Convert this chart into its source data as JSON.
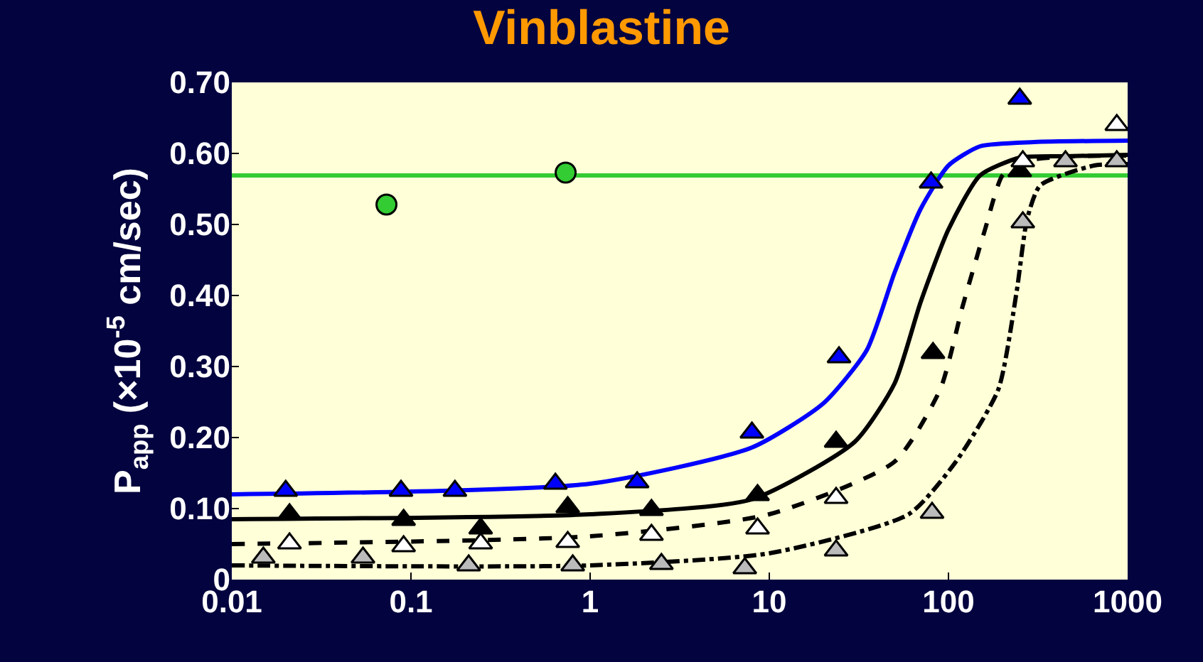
{
  "chart_data": {
    "type": "scatter",
    "title": "Vinblastine",
    "ylabel": "P$_{app}$ (×10$^{-5}$ cm/sec)",
    "log": "x",
    "grid": false,
    "xlim": [
      0.01,
      1000
    ],
    "xticks": [
      0.01,
      0.1,
      1,
      10,
      100,
      1000
    ],
    "ylim": [
      0,
      0.7
    ],
    "yticks": [
      0,
      {
        "value": 0.1,
        "label": "0.10"
      },
      {
        "value": 0.2,
        "label": "0.20"
      },
      {
        "value": 0.3,
        "label": "0.30"
      },
      {
        "value": 0.4,
        "label": "0.40"
      },
      {
        "value": 0.5,
        "label": "0.50"
      },
      {
        "value": 0.6,
        "label": "0.60"
      },
      {
        "value": 0.7,
        "label": "0.70"
      }
    ],
    "ref_lines": [
      {
        "axis": "y",
        "value": 0.569,
        "color": "#33cc33",
        "line_style": "solid"
      }
    ],
    "series": [
      {
        "type": "line",
        "color": "#0000ff",
        "line_style": "solid",
        "marker": "none",
        "x": [
          0.01,
          1,
          8,
          20,
          35,
          50,
          70,
          100,
          150,
          300,
          1000
        ],
        "values": [
          0.12,
          0.135,
          0.186,
          0.248,
          0.323,
          0.432,
          0.522,
          0.583,
          0.61,
          0.616,
          0.618
        ]
      },
      {
        "type": "line",
        "color": "#000000",
        "line_style": "solid",
        "marker": "none",
        "x": [
          0.01,
          1,
          8,
          30,
          50,
          70,
          100,
          150,
          250,
          450,
          1000
        ],
        "values": [
          0.085,
          0.092,
          0.113,
          0.194,
          0.276,
          0.391,
          0.493,
          0.569,
          0.594,
          0.596,
          0.598
        ]
      },
      {
        "type": "line",
        "color": "#000000",
        "line_style": "dashed",
        "marker": "none",
        "x": [
          0.01,
          1,
          10,
          50,
          90,
          120,
          160,
          200,
          260,
          500,
          1000
        ],
        "values": [
          0.05,
          0.061,
          0.092,
          0.166,
          0.268,
          0.385,
          0.493,
          0.569,
          0.589,
          0.596,
          0.597
        ]
      },
      {
        "type": "line",
        "color": "#000000",
        "line_style": "dotted",
        "marker": "none",
        "x": [
          0.01,
          1,
          10,
          60,
          110,
          190,
          240,
          275,
          325,
          650,
          1000
        ],
        "values": [
          0.02,
          0.02,
          0.037,
          0.092,
          0.166,
          0.268,
          0.405,
          0.508,
          0.555,
          0.583,
          0.585
        ]
      },
      {
        "color": "#33cc33",
        "marker": "circle",
        "x": [
          0.073,
          0.73
        ],
        "values": [
          0.528,
          0.573
        ]
      },
      {
        "color": "#0000ff",
        "marker": "triangle",
        "x": [
          0.02,
          0.088,
          0.176,
          0.64,
          1.83,
          8,
          24.5,
          80,
          250
        ],
        "values": [
          0.125,
          0.125,
          0.125,
          0.135,
          0.137,
          0.207,
          0.313,
          0.559,
          0.677
        ]
      },
      {
        "color": "#000000",
        "marker": "triangle",
        "x": [
          0.021,
          0.091,
          0.245,
          0.75,
          2.2,
          8.6,
          23.6,
          82,
          250
        ],
        "values": [
          0.092,
          0.084,
          0.072,
          0.102,
          0.098,
          0.119,
          0.194,
          0.319,
          0.575
        ]
      },
      {
        "color": "#ffffff",
        "marker": "triangle",
        "x": [
          0.021,
          0.091,
          0.245,
          0.75,
          2.2,
          8.6,
          23.6,
          260,
          870
        ],
        "values": [
          0.051,
          0.047,
          0.051,
          0.053,
          0.063,
          0.072,
          0.115,
          0.589,
          0.64
        ]
      },
      {
        "color": "#bbbbbb",
        "marker": "triangle",
        "x": [
          0.015,
          0.054,
          0.21,
          0.8,
          2.5,
          7.3,
          23.6,
          81,
          260,
          450,
          870
        ],
        "values": [
          0.031,
          0.031,
          0.02,
          0.02,
          0.022,
          0.016,
          0.041,
          0.094,
          0.503,
          0.589,
          0.589
        ]
      }
    ]
  }
}
